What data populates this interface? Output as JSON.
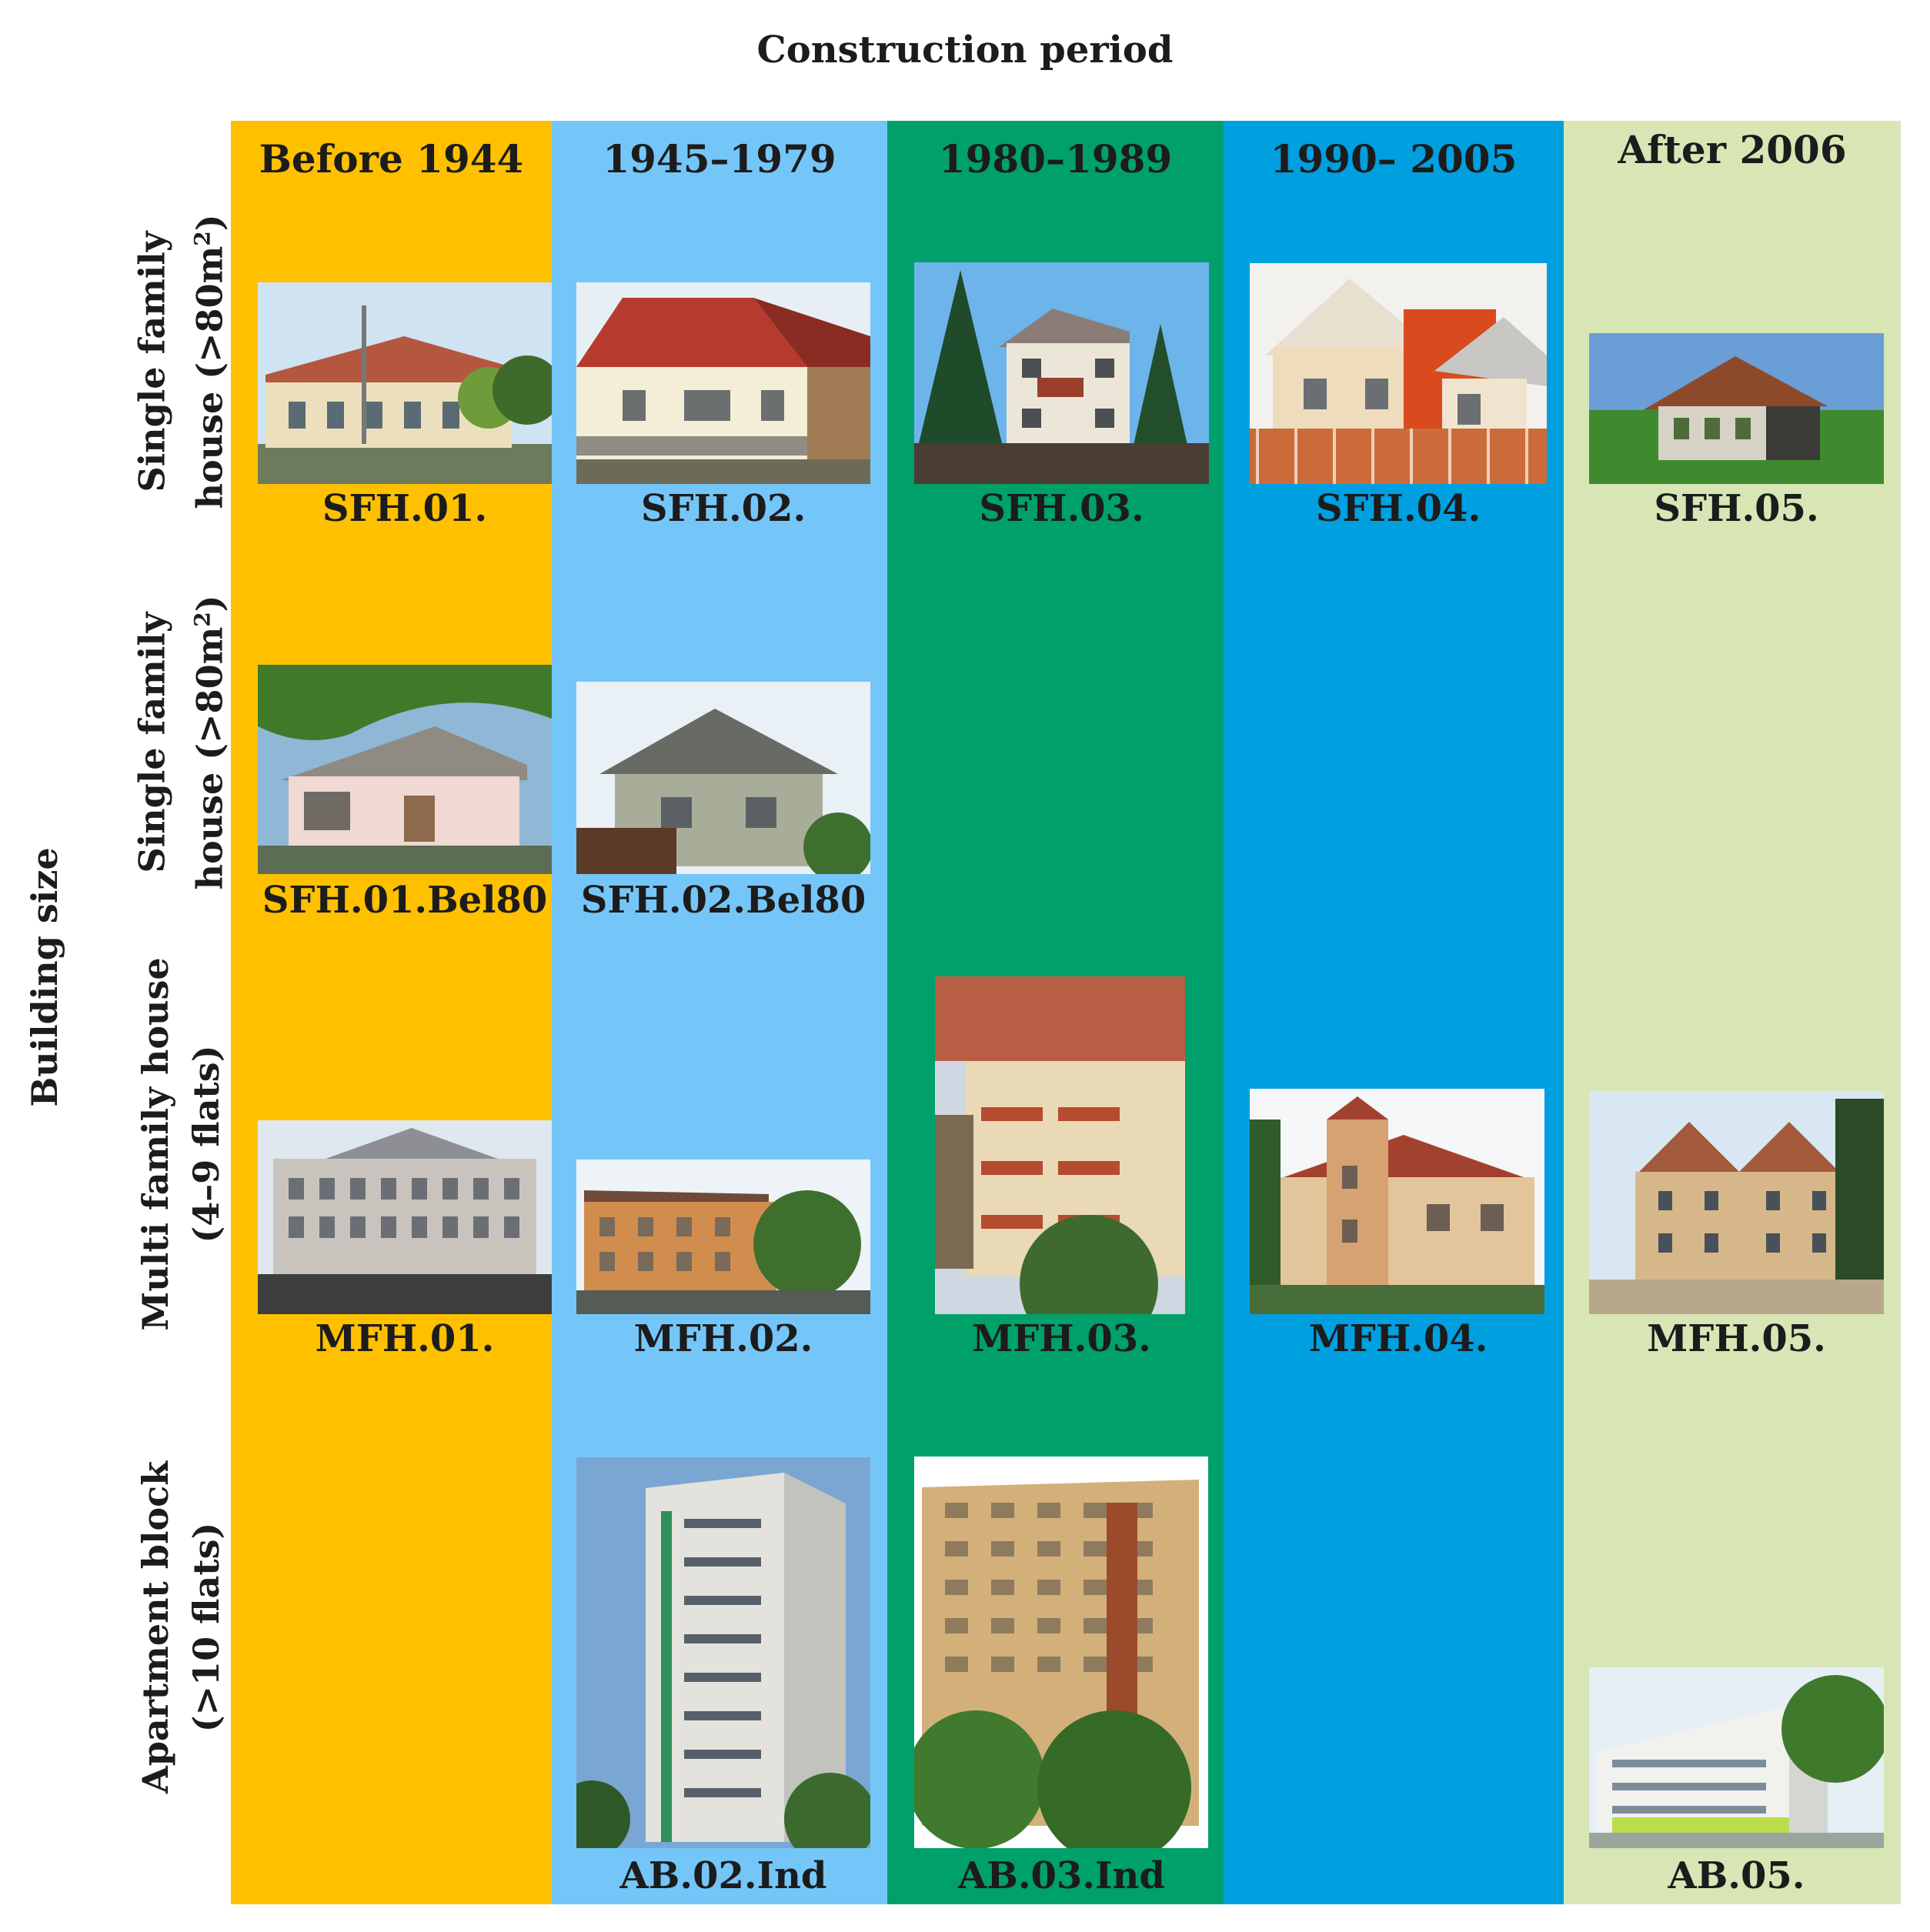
{
  "header": {
    "title": "Construction period"
  },
  "axis": {
    "y_label": "Building size"
  },
  "rows": [
    {
      "label_line1": "Single family",
      "label_line2": "house (>80m",
      "label_sup": "2",
      "label_end": ")"
    },
    {
      "label_line1": "Single family",
      "label_line2": "house (>80m",
      "label_sup": "2",
      "label_end": ")"
    },
    {
      "label_line1": "Multi family house",
      "label_line2": "(4–9 flats)"
    },
    {
      "label_line1": "Apartment block",
      "label_line2": "(>10 flats)"
    }
  ],
  "columns": [
    {
      "label": "Before 1944",
      "color": "#FFC000"
    },
    {
      "label": "1945–1979",
      "color": "#75C6F8"
    },
    {
      "label": "1980–1989",
      "color": "#00A06A"
    },
    {
      "label": "1990– 2005",
      "color": "#009FDF"
    },
    {
      "label": "After 2006",
      "color": "#D8E6B6"
    }
  ],
  "cells": {
    "sfh01": "SFH.01.",
    "sfh02": "SFH.02.",
    "sfh03": "SFH.03.",
    "sfh04": "SFH.04.",
    "sfh05": "SFH.05.",
    "sfh01bel": "SFH.01.Bel80",
    "sfh02bel": "SFH.02.Bel80",
    "mfh01": "MFH.01.",
    "mfh02": "MFH.02.",
    "mfh03": "MFH.03.",
    "mfh04": "MFH.04.",
    "mfh05": "MFH.05.",
    "ab02": "AB.02.Ind",
    "ab03": "AB.03.Ind",
    "ab05": "AB.05."
  }
}
